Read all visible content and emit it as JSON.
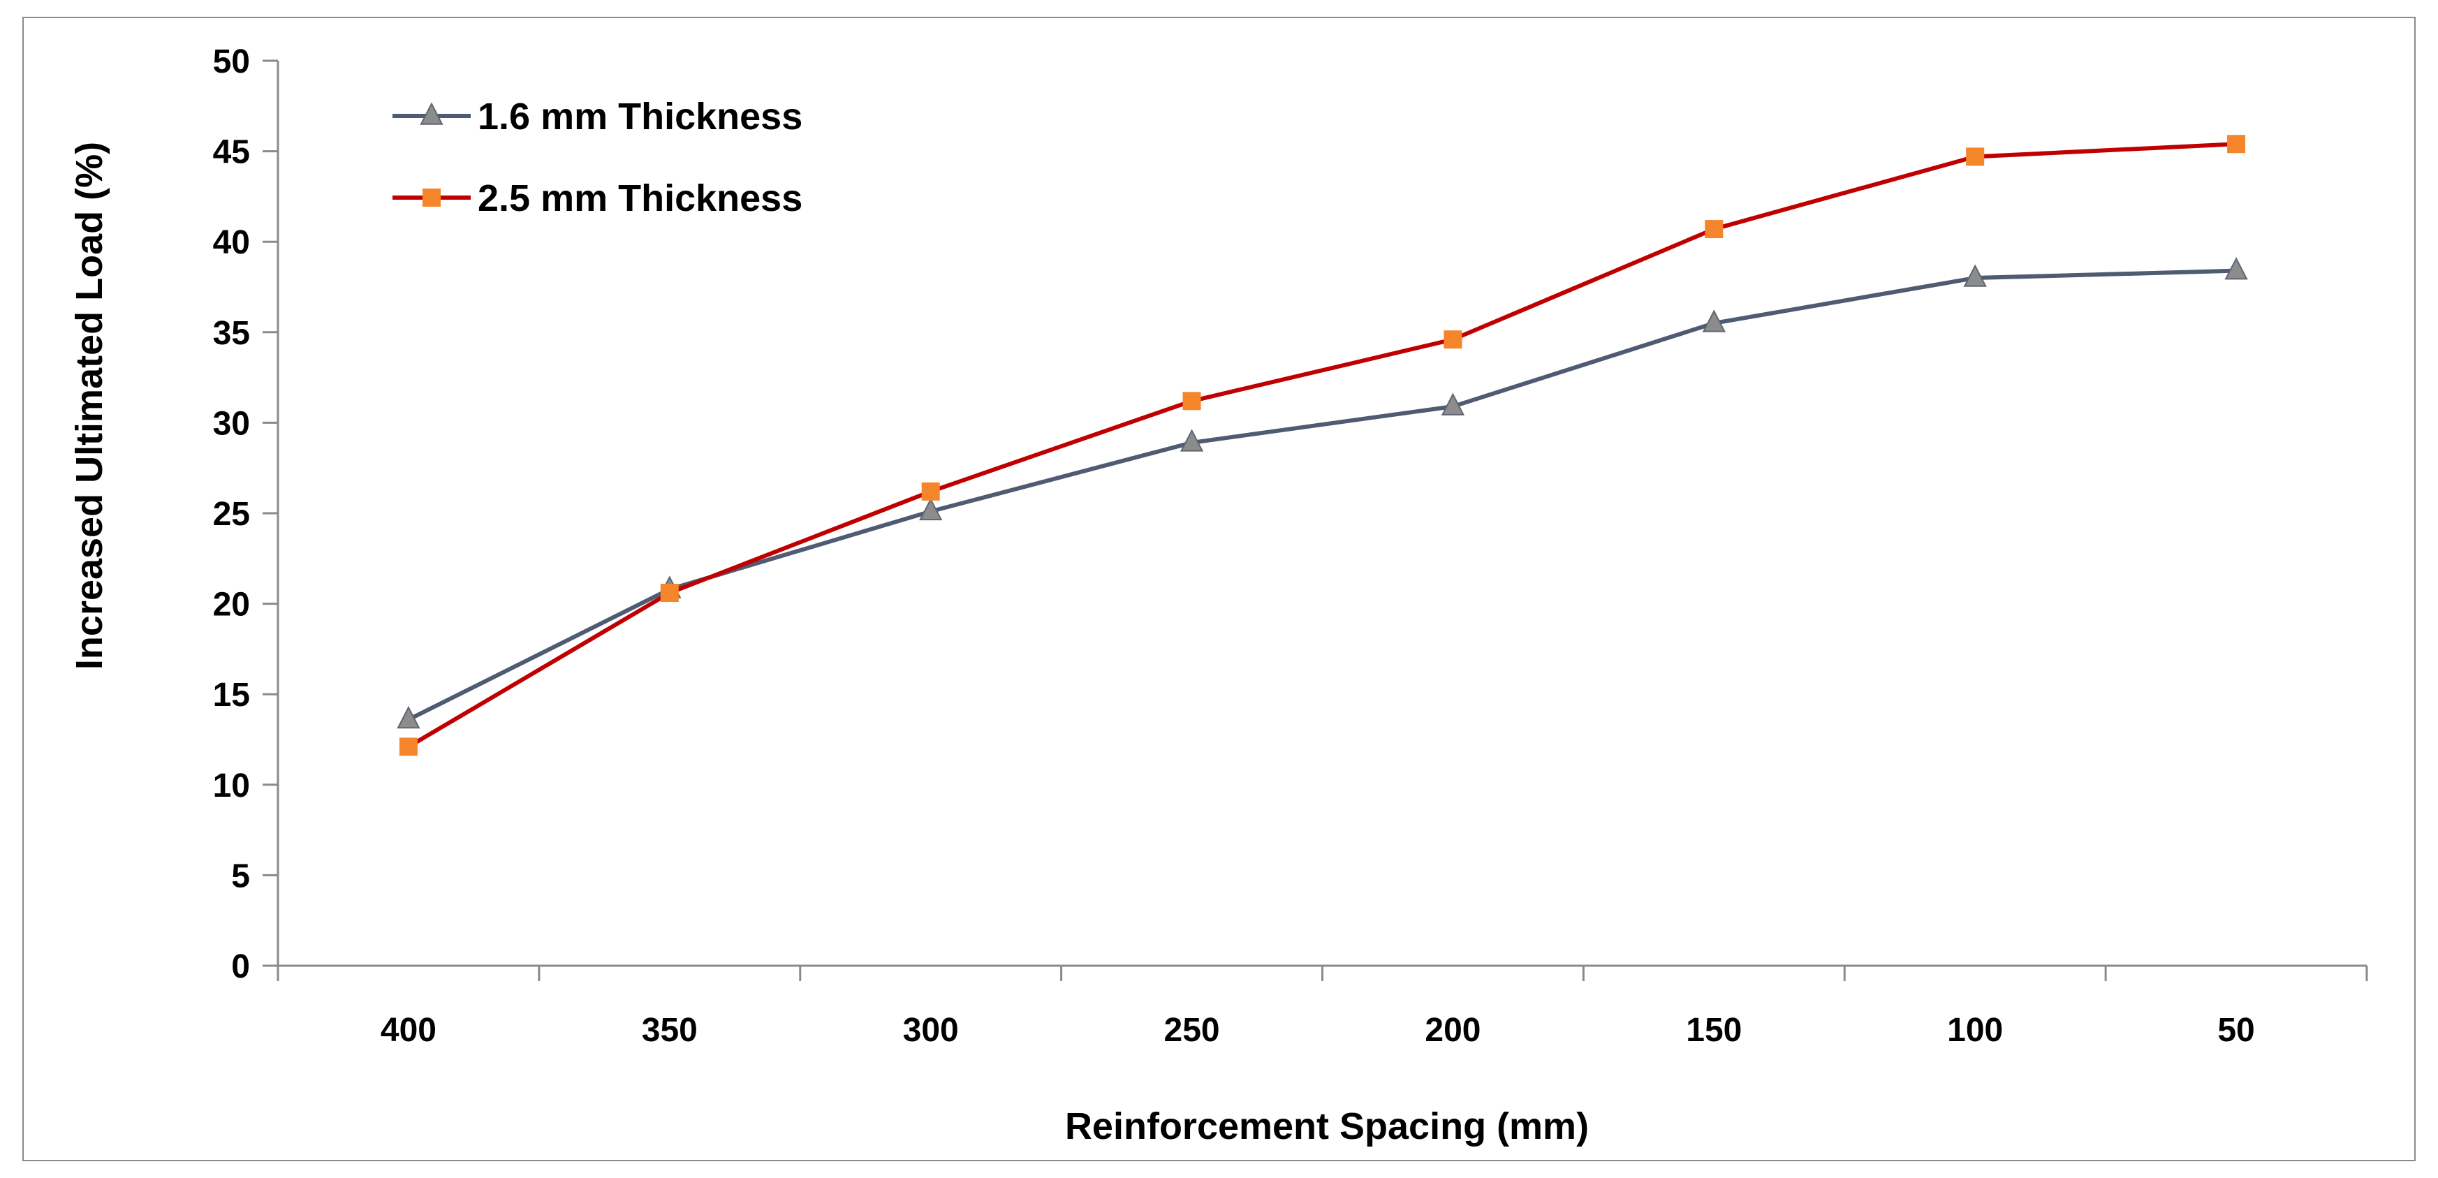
{
  "chart_data": {
    "type": "line",
    "title": "",
    "xlabel": "Reinforcement Spacing (mm)",
    "ylabel": "Increased Ultimated Load (%)",
    "ylim": [
      0,
      50
    ],
    "yticks": [
      "0",
      "5",
      "10",
      "15",
      "20",
      "25",
      "30",
      "35",
      "40",
      "45",
      "50"
    ],
    "categories": [
      "400",
      "350",
      "300",
      "250",
      "200",
      "150",
      "100",
      "50"
    ],
    "grid": false,
    "legend_position": "top-left",
    "series": [
      {
        "name": "1.6 mm Thickness",
        "color": "#4f5b73",
        "marker_color": "#8c8c8c",
        "marker": "triangle",
        "values": [
          13.6,
          20.8,
          25.1,
          28.9,
          30.9,
          35.5,
          38.0,
          38.4
        ]
      },
      {
        "name": "2.5 mm Thickness",
        "color": "#c00000",
        "marker_color": "#f5852a",
        "marker": "square",
        "values": [
          12.1,
          20.6,
          26.2,
          31.2,
          34.6,
          40.7,
          44.7,
          45.4
        ]
      }
    ]
  }
}
